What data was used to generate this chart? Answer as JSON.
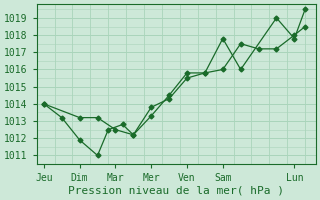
{
  "background_color": "#cde8d8",
  "grid_color": "#aad4bb",
  "line_color": "#1a6b2a",
  "marker_color": "#1a6b2a",
  "xlabel": "Pression niveau de la mer( hPa )",
  "xlabel_fontsize": 8,
  "tick_fontsize": 7,
  "ylim": [
    1010.5,
    1019.8
  ],
  "yticks": [
    1011,
    1012,
    1013,
    1014,
    1015,
    1016,
    1017,
    1018,
    1019
  ],
  "day_labels": [
    "Jeu",
    "Dim",
    "Mar",
    "Mer",
    "Ven",
    "Sam",
    "Lun"
  ],
  "day_positions": [
    0,
    1,
    2,
    3,
    4,
    5,
    7
  ],
  "series1_x": [
    0,
    0.5,
    1.0,
    1.5,
    1.8,
    2.2,
    2.5,
    3.0,
    3.5,
    4.0,
    4.5,
    5.0,
    5.5,
    6.5,
    7.0,
    7.3
  ],
  "series1_y": [
    1014.0,
    1013.2,
    1011.9,
    1011.0,
    1012.5,
    1012.8,
    1012.2,
    1013.8,
    1014.3,
    1015.5,
    1015.8,
    1017.8,
    1016.0,
    1019.0,
    1017.8,
    1019.5
  ],
  "series2_x": [
    0,
    1.0,
    1.5,
    2.0,
    2.5,
    3.0,
    3.5,
    4.0,
    4.5,
    5.0,
    5.5,
    6.0,
    6.5,
    7.0,
    7.3
  ],
  "series2_y": [
    1014.0,
    1013.2,
    1013.2,
    1012.5,
    1012.2,
    1013.3,
    1014.5,
    1015.8,
    1015.8,
    1016.0,
    1017.5,
    1017.2,
    1017.2,
    1018.0,
    1018.5
  ],
  "xlim": [
    -0.2,
    7.6
  ]
}
